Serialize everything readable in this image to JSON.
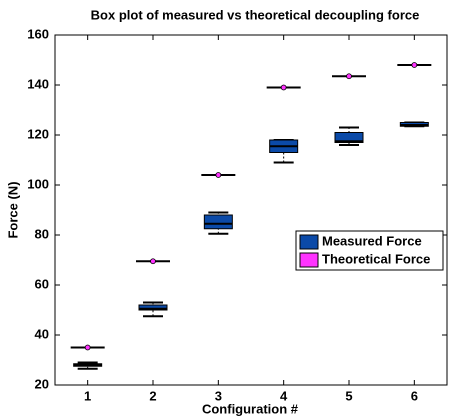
{
  "chart_data": {
    "type": "box",
    "title": "Box plot of measured vs theoretical decoupling force",
    "xlabel": "Configuration #",
    "ylabel": "Force (N)",
    "categories": [
      "1",
      "2",
      "3",
      "4",
      "5",
      "6"
    ],
    "ylim": [
      20,
      160
    ],
    "yticks": [
      20,
      40,
      60,
      80,
      100,
      120,
      140,
      160
    ],
    "legend": "right",
    "series": [
      {
        "name": "Measured Force",
        "color": "#0b4aa8",
        "min": [
          26.5,
          47.5,
          80.5,
          109,
          116,
          123.5
        ],
        "q1": [
          27.5,
          50,
          82.5,
          113,
          117,
          123.5
        ],
        "median": [
          28,
          50.5,
          84.5,
          115.5,
          117.5,
          124
        ],
        "q3": [
          28.5,
          52,
          88,
          118,
          121,
          125
        ],
        "max": [
          29,
          53,
          89,
          118,
          123,
          125
        ]
      },
      {
        "name": "Theoretical Force",
        "color": "#ff33ff",
        "values": [
          35,
          69.5,
          104,
          139,
          143.5,
          148
        ]
      }
    ]
  }
}
